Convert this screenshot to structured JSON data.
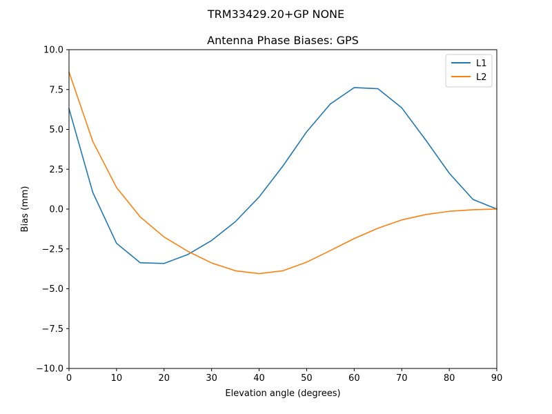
{
  "suptitle": "TRM33429.20+GP  NONE",
  "chart_data": {
    "type": "line",
    "title": "Antenna Phase Biases: GPS",
    "xlabel": "Elevation angle (degrees)",
    "ylabel": "Bias (mm)",
    "xlim": [
      0,
      90
    ],
    "ylim": [
      -10,
      10
    ],
    "xticks": [
      0,
      10,
      20,
      30,
      40,
      50,
      60,
      70,
      80,
      90
    ],
    "yticks": [
      -10.0,
      -7.5,
      -5.0,
      -2.5,
      0.0,
      2.5,
      5.0,
      7.5,
      10.0
    ],
    "xtick_labels": [
      "0",
      "10",
      "20",
      "30",
      "40",
      "50",
      "60",
      "70",
      "80",
      "90"
    ],
    "ytick_labels": [
      "−10.0",
      "−7.5",
      "−5.0",
      "−2.5",
      "0.0",
      "2.5",
      "5.0",
      "7.5",
      "10.0"
    ],
    "grid": false,
    "legend": "upper-right",
    "x": [
      0,
      5,
      10,
      15,
      20,
      25,
      30,
      35,
      40,
      45,
      50,
      55,
      60,
      65,
      70,
      75,
      80,
      85,
      90
    ],
    "series": [
      {
        "name": "L1",
        "color": "#1f77b4",
        "values": [
          6.3,
          1.05,
          -2.15,
          -3.37,
          -3.41,
          -2.85,
          -1.97,
          -0.79,
          0.76,
          2.7,
          4.85,
          6.6,
          7.62,
          7.55,
          6.35,
          4.35,
          2.25,
          0.6,
          0.0
        ]
      },
      {
        "name": "L2",
        "color": "#ff7f0e",
        "values": [
          8.6,
          4.25,
          1.35,
          -0.5,
          -1.75,
          -2.65,
          -3.38,
          -3.87,
          -4.05,
          -3.87,
          -3.33,
          -2.6,
          -1.85,
          -1.2,
          -0.68,
          -0.35,
          -0.14,
          -0.04,
          0.0
        ]
      }
    ]
  }
}
